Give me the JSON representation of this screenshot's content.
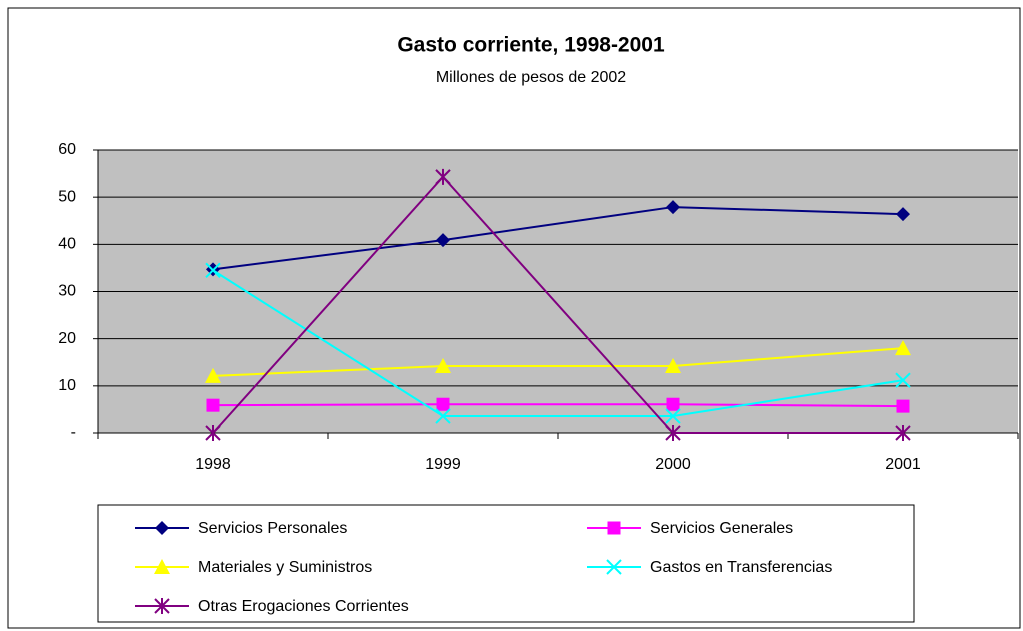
{
  "chart_data": {
    "type": "line",
    "title": "Gasto corriente, 1998-2001",
    "subtitle": "Millones de pesos de 2002",
    "categories": [
      "1998",
      "1999",
      "2000",
      "2001"
    ],
    "series": [
      {
        "name": "Servicios Personales",
        "color": "#000080",
        "marker": "diamond",
        "values": [
          34.7,
          40.9,
          47.9,
          46.4
        ]
      },
      {
        "name": "Servicios Generales",
        "color": "#ff00ff",
        "marker": "square",
        "values": [
          5.9,
          6.1,
          6.1,
          5.7
        ]
      },
      {
        "name": "Materiales y Suministros",
        "color": "#ffff00",
        "marker": "triangle",
        "values": [
          12.1,
          14.2,
          14.2,
          18.0
        ]
      },
      {
        "name": "Gastos en Transferencias",
        "color": "#00ffff",
        "marker": "x",
        "values": [
          34.5,
          3.6,
          3.6,
          11.2
        ]
      },
      {
        "name": "Otras Erogaciones Corrientes",
        "color": "#800080",
        "marker": "star",
        "values": [
          0,
          54.3,
          0,
          0
        ]
      }
    ],
    "ylim": [
      0,
      60
    ],
    "yticks": [
      {
        "value": 0,
        "label": "-"
      },
      10,
      20,
      30,
      40,
      50,
      60
    ],
    "grid": true,
    "plot_background": "#c0c0c0",
    "legend": "bottom"
  }
}
